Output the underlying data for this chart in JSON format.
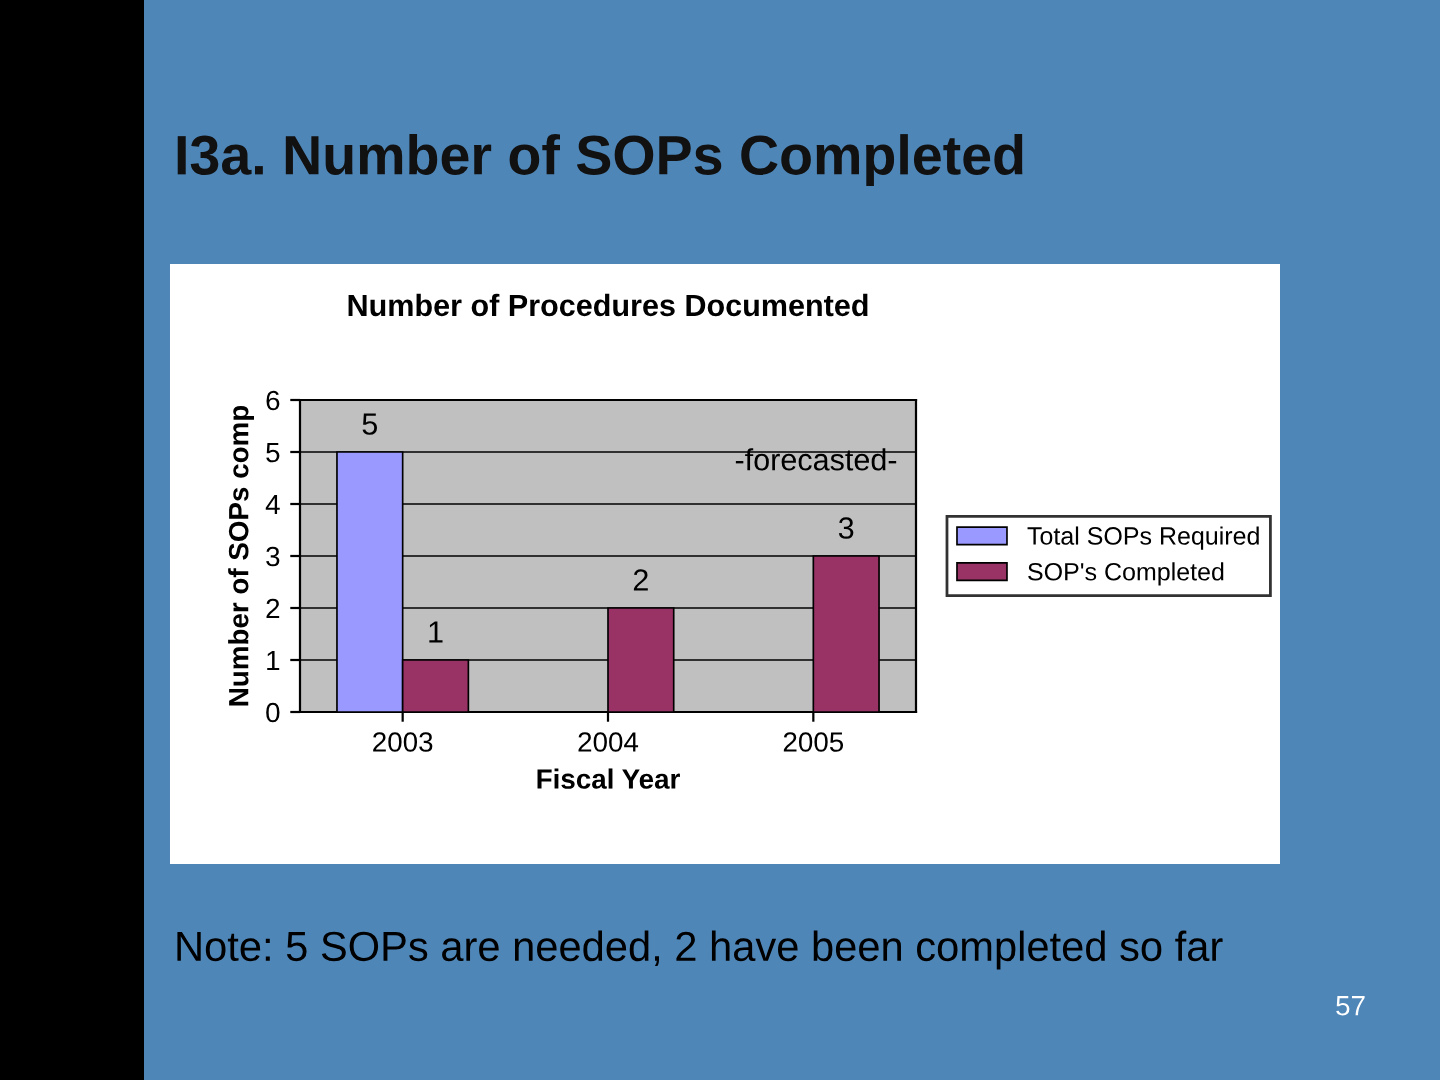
{
  "chart_data": {
    "type": "bar",
    "title": "I3a. Number of SOPs Completed",
    "subtitle": "Number of Procedures Documented",
    "xlabel": "Fiscal Year",
    "ylabel": "Number of SOPs comp",
    "categories": [
      "2003",
      "2004",
      "2005"
    ],
    "series": [
      {
        "name": "Total SOPs Required",
        "color": "#9999ff",
        "values": [
          5,
          null,
          null
        ]
      },
      {
        "name": "SOP's Completed",
        "color": "#993366",
        "values": [
          1,
          2,
          3
        ]
      }
    ],
    "ylim": [
      0,
      6
    ],
    "yticks": [
      0,
      1,
      2,
      3,
      4,
      5,
      6
    ],
    "grid": "y",
    "legend": "right",
    "data_labels": true,
    "annotations": [
      "-forecasted-",
      "Note: 5 SOPs are needed, 2 have been completed so far",
      "57"
    ]
  }
}
